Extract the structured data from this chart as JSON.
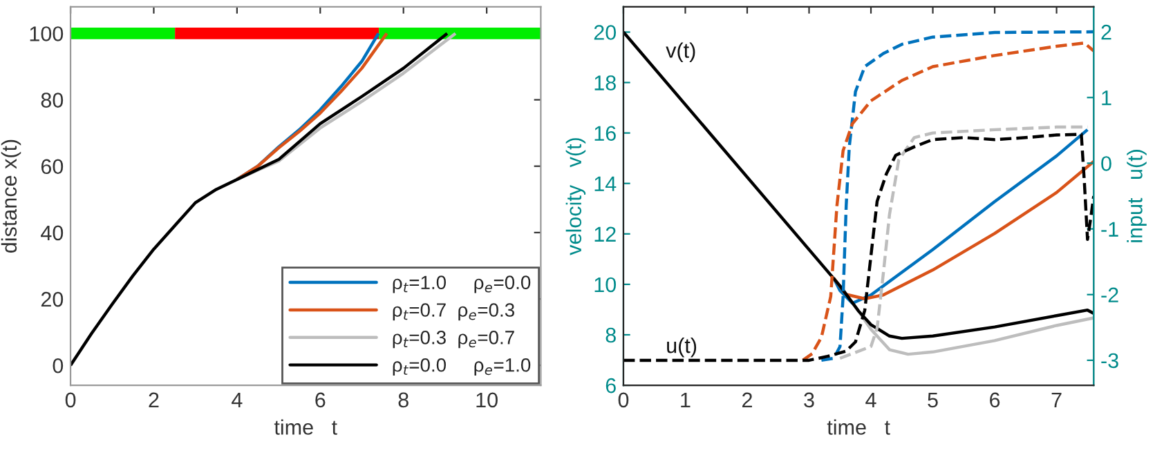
{
  "chart_data": [
    {
      "type": "line",
      "xlabel": "time   t",
      "ylabel": "distance x(t)",
      "xlim": [
        0,
        11.3
      ],
      "ylim": [
        -6,
        108
      ],
      "xticks": [
        0,
        2,
        4,
        6,
        8,
        10
      ],
      "yticks": [
        0,
        20,
        40,
        60,
        80,
        100
      ],
      "legend": "bottom right",
      "series": [
        {
          "color": "#00ee00",
          "x": [
            0,
            2.51
          ],
          "values": [
            100,
            100
          ]
        },
        {
          "color": "#ff0000",
          "x": [
            2.51,
            7.41
          ],
          "values": [
            100,
            100
          ]
        },
        {
          "color": "#00ee00",
          "x": [
            7.41,
            11.3
          ],
          "values": [
            100,
            100
          ]
        },
        {
          "name": "ρ$_{t}$=1.0     ρ$_{e}$=0.0",
          "color": "#0072bd",
          "x": [
            4,
            4.5,
            5,
            5.5,
            6,
            6.5,
            7,
            7.4
          ],
          "values": [
            56,
            60,
            65.8,
            71,
            77,
            84,
            91.6,
            100
          ]
        },
        {
          "name": "ρ$_{t}$=0.7  ρ$_{e}$=0.3",
          "color": "#d95319",
          "x": [
            4,
            4.5,
            5,
            5.5,
            6,
            6.5,
            7,
            7.6
          ],
          "values": [
            56,
            60,
            65.5,
            70.5,
            76,
            82.5,
            89.5,
            100
          ]
        },
        {
          "name": "ρ$_{t}$=0.3  ρ$_{e}$=0.7",
          "color": "#bdbdbd",
          "x": [
            4,
            4.5,
            5,
            6,
            7,
            8,
            9.25
          ],
          "values": [
            56,
            58.8,
            61.5,
            71.5,
            79.5,
            88,
            100
          ]
        },
        {
          "name": "ρ$_{t}$=0.0     ρ$_{e}$=1.0",
          "color": "#000000",
          "x": [
            0,
            0.5,
            1,
            1.5,
            2,
            2.5,
            3,
            3.5,
            4,
            4.5,
            5,
            6,
            7,
            8,
            9.05
          ],
          "values": [
            0,
            9.5,
            18.4,
            27,
            35,
            42,
            49,
            53,
            56,
            59,
            62,
            72.8,
            81,
            89.5,
            100
          ]
        }
      ]
    },
    {
      "type": "line",
      "xlabel": "time   t",
      "ylabel": "velocity   v(t)",
      "y2label": "input   u(t)",
      "xlim": [
        0,
        7.6
      ],
      "ylim": [
        6,
        21
      ],
      "y2lim": [
        -3.38,
        2.38
      ],
      "xticks": [
        0,
        1,
        2,
        3,
        4,
        5,
        6,
        7
      ],
      "yticks": [
        6,
        8,
        10,
        12,
        14,
        16,
        18,
        20
      ],
      "y2ticks": [
        -3,
        -2,
        -1,
        0,
        1,
        2
      ],
      "annotations": [
        "v(t)",
        "u(t)"
      ],
      "series": [
        {
          "color": "#0072bd",
          "line_style": "dashed",
          "axis": "y2",
          "x": [
            3.2,
            3.4,
            3.5,
            3.55,
            3.6,
            3.65,
            3.75,
            3.9,
            4.2,
            4.5,
            5,
            6,
            7.6
          ],
          "values": [
            -3,
            -2.97,
            -2.79,
            -2.03,
            -0.65,
            0.25,
            1.09,
            1.47,
            1.67,
            1.81,
            1.92,
            1.99,
            2
          ]
        },
        {
          "color": "#d95319",
          "line_style": "dashed",
          "axis": "y2",
          "x": [
            2.9,
            3.05,
            3.2,
            3.35,
            3.45,
            3.55,
            3.7,
            4.0,
            4.5,
            5,
            6,
            7,
            7.45,
            7.6
          ],
          "values": [
            -3,
            -2.9,
            -2.65,
            -2.03,
            -0.65,
            0.19,
            0.6,
            0.95,
            1.26,
            1.47,
            1.64,
            1.78,
            1.83,
            1.71
          ]
        },
        {
          "color": "#bdbdbd",
          "line_style": "dashed",
          "axis": "y2",
          "x": [
            3.5,
            4.0,
            4.1,
            4.2,
            4.3,
            4.45,
            4.7,
            5,
            6,
            7,
            7.5
          ],
          "values": [
            -2.97,
            -2.79,
            -2.51,
            -1.68,
            -0.78,
            0.05,
            0.39,
            0.46,
            0.51,
            0.55,
            0.55
          ]
        },
        {
          "color": "#000000",
          "line_style": "dashed",
          "axis": "y2",
          "x": [
            0,
            3.0,
            3.3,
            3.6,
            3.75,
            3.9,
            4.0,
            4.1,
            4.25,
            4.4,
            4.7,
            5,
            5.5,
            6,
            6.5,
            7,
            7.4,
            7.45,
            7.5,
            7.55,
            7.6
          ],
          "values": [
            -3,
            -3,
            -2.94,
            -2.86,
            -2.72,
            -2.24,
            -1.41,
            -0.58,
            -0.16,
            0.12,
            0.25,
            0.36,
            0.39,
            0.36,
            0.39,
            0.43,
            0.44,
            -0.3,
            -1.16,
            -0.85,
            -0.5
          ]
        },
        {
          "color": "#0072bd",
          "line_style": "solid",
          "x": [
            3.4,
            3.5,
            3.7,
            4,
            5,
            6,
            7,
            7.5
          ],
          "values": [
            10.24,
            9.75,
            9.25,
            9.58,
            11.38,
            13.28,
            15.09,
            16.13
          ]
        },
        {
          "color": "#d95319",
          "line_style": "solid",
          "x": [
            3.4,
            3.6,
            3.9,
            4.2,
            5,
            6,
            7,
            7.6
          ],
          "values": [
            10.24,
            9.6,
            9.43,
            9.58,
            10.57,
            12.02,
            13.64,
            14.87
          ]
        },
        {
          "color": "#bdbdbd",
          "line_style": "solid",
          "x": [
            3.8,
            4,
            4.3,
            4.6,
            5,
            6,
            7,
            7.6
          ],
          "values": [
            8.94,
            8.22,
            7.41,
            7.23,
            7.32,
            7.77,
            8.37,
            8.67
          ]
        },
        {
          "color": "#000000",
          "line_style": "solid",
          "x": [
            0,
            3.5,
            3.8,
            4,
            4.3,
            4.5,
            5,
            6,
            7,
            7.5,
            7.6
          ],
          "values": [
            20,
            9.94,
            8.94,
            8.4,
            7.95,
            7.86,
            7.95,
            8.31,
            8.76,
            8.98,
            8.85
          ]
        }
      ]
    }
  ]
}
